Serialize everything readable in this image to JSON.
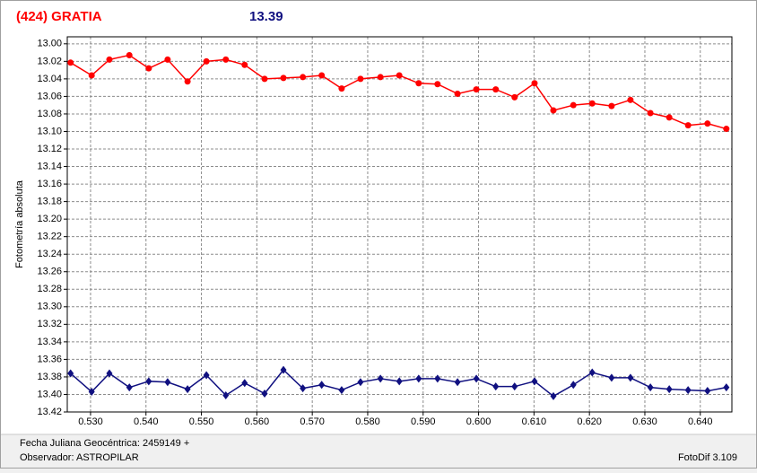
{
  "chart_data": {
    "type": "line",
    "title": "(424) GRATIA",
    "title_value": "13.39",
    "ylabel": "Fotometría absoluta",
    "xlim": [
      0.5258,
      0.6457
    ],
    "ylim": [
      13.42,
      12.992
    ],
    "xticks": [
      {
        "value": 0.53,
        "label": "0.530"
      },
      {
        "value": 0.54,
        "label": "0.540"
      },
      {
        "value": 0.55,
        "label": "0.550"
      },
      {
        "value": 0.56,
        "label": "0.560"
      },
      {
        "value": 0.57,
        "label": "0.570"
      },
      {
        "value": 0.58,
        "label": "0.580"
      },
      {
        "value": 0.59,
        "label": "0.590"
      },
      {
        "value": 0.6,
        "label": "0.600"
      },
      {
        "value": 0.61,
        "label": "0.610"
      },
      {
        "value": 0.62,
        "label": "0.620"
      },
      {
        "value": 0.63,
        "label": "0.630"
      },
      {
        "value": 0.64,
        "label": "0.640"
      }
    ],
    "yticks": [
      {
        "value": 13,
        "label": "13.00"
      },
      13.02,
      13.04,
      13.06,
      13.08,
      {
        "value": 13.1,
        "label": "13.10"
      },
      13.12,
      13.14,
      13.16,
      13.18,
      {
        "value": 13.2,
        "label": "13.20"
      },
      13.22,
      13.24,
      13.26,
      13.28,
      {
        "value": 13.3,
        "label": "13.30"
      },
      13.32,
      13.34,
      13.36,
      13.38,
      {
        "value": 13.4,
        "label": "13.40"
      },
      13.42
    ],
    "grid": true,
    "x": [
      0.5264,
      0.5302,
      0.5334,
      0.537,
      0.5405,
      0.5439,
      0.5475,
      0.5509,
      0.5544,
      0.5578,
      0.5614,
      0.5648,
      0.5683,
      0.5717,
      0.5753,
      0.5787,
      0.5823,
      0.5857,
      0.5892,
      0.5926,
      0.5962,
      0.5996,
      0.6031,
      0.6065,
      0.6101,
      0.6135,
      0.6171,
      0.6205,
      0.624,
      0.6274,
      0.631,
      0.6344,
      0.6378,
      0.6413,
      0.6447
    ],
    "series": [
      {
        "color": "#ff0000",
        "marker": "circle",
        "values": [
          13.0215,
          13.036,
          13.018,
          13.013,
          13.028,
          13.018,
          13.043,
          13.02,
          13.018,
          13.024,
          13.04,
          13.039,
          13.038,
          13.036,
          13.051,
          13.04,
          13.038,
          13.036,
          13.045,
          13.046,
          13.057,
          13.052,
          13.052,
          13.061,
          13.045,
          13.076,
          13.07,
          13.068,
          13.071,
          13.064,
          13.079,
          13.084,
          13.093,
          13.091,
          13.097
        ]
      },
      {
        "color": "#101080",
        "marker": "diamond",
        "values": [
          13.376,
          13.397,
          13.376,
          13.392,
          13.385,
          13.386,
          13.394,
          13.378,
          13.401,
          13.387,
          13.399,
          13.372,
          13.393,
          13.389,
          13.395,
          13.386,
          13.382,
          13.385,
          13.382,
          13.382,
          13.386,
          13.382,
          13.391,
          13.391,
          13.385,
          13.402,
          13.389,
          13.375,
          13.381,
          13.381,
          13.392,
          13.394,
          13.395,
          13.396,
          13.392
        ]
      }
    ]
  },
  "footer": {
    "date": "Fecha Juliana Geocéntrica: 2459149 +",
    "observer": "Observador: ASTROPILAR",
    "software": "FotoDif 3.109"
  }
}
